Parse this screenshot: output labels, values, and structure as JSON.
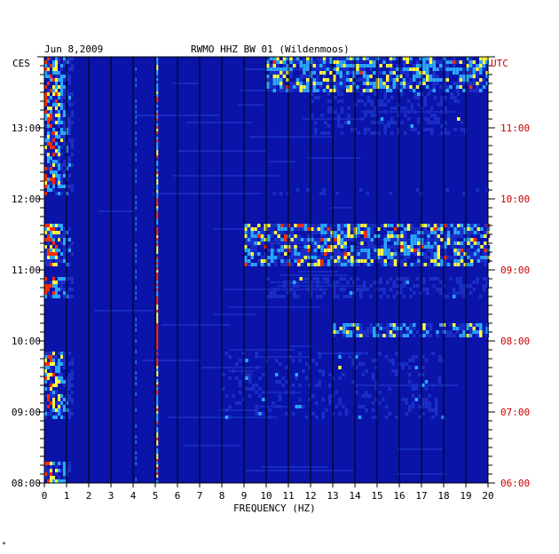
{
  "header": {
    "date": "Jun 8,2009",
    "station": "RWMO HHZ BW 01 (Wildenmoos)"
  },
  "chart_data": {
    "type": "heatmap",
    "xlabel": "FREQUENCY (HZ)",
    "xlim": [
      0,
      20
    ],
    "x_ticks": [
      "0",
      "1",
      "2",
      "3",
      "4",
      "5",
      "6",
      "7",
      "8",
      "9",
      "10",
      "11",
      "12",
      "13",
      "14",
      "15",
      "16",
      "17",
      "18",
      "19",
      "20"
    ],
    "left_axis": {
      "label": "CES",
      "ticks": [
        "13:00",
        "12:00",
        "11:00",
        "10:00",
        "09:00",
        "08:00"
      ]
    },
    "right_axis": {
      "label": "UTC",
      "ticks": [
        "11:00",
        "10:00",
        "09:00",
        "08:00",
        "07:00",
        "06:00"
      ]
    },
    "grid": true,
    "colors": {
      "background": "#0a14a8",
      "low": "#1a2fc8",
      "mid": "#2aa8ff",
      "high": "#ffff40",
      "peak": "#ff2a00",
      "grid": "#000000",
      "utc_labels": "#cc0000"
    }
  },
  "footer": {
    "mark": "*"
  }
}
